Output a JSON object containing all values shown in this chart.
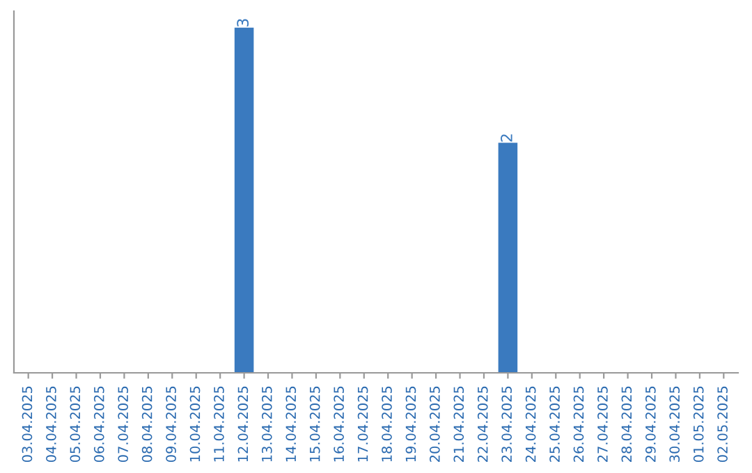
{
  "chart_data": {
    "type": "bar",
    "categories": [
      "03.04.2025",
      "04.04.2025",
      "05.04.2025",
      "06.04.2025",
      "07.04.2025",
      "08.04.2025",
      "09.04.2025",
      "10.04.2025",
      "11.04.2025",
      "12.04.2025",
      "13.04.2025",
      "14.04.2025",
      "15.04.2025",
      "16.04.2025",
      "17.04.2025",
      "18.04.2025",
      "19.04.2025",
      "20.04.2025",
      "21.04.2025",
      "22.04.2025",
      "23.04.2025",
      "24.04.2025",
      "25.04.2025",
      "26.04.2025",
      "27.04.2025",
      "28.04.2025",
      "29.04.2025",
      "30.04.2025",
      "01.05.2025",
      "02.05.2025"
    ],
    "values": [
      0,
      0,
      0,
      0,
      0,
      0,
      0,
      0,
      0,
      3,
      0,
      0,
      0,
      0,
      0,
      0,
      0,
      0,
      0,
      0,
      2,
      0,
      0,
      0,
      0,
      0,
      0,
      0,
      0,
      0
    ],
    "value_labels": [
      null,
      null,
      null,
      null,
      null,
      null,
      null,
      null,
      null,
      "3",
      null,
      null,
      null,
      null,
      null,
      null,
      null,
      null,
      null,
      null,
      "2",
      null,
      null,
      null,
      null,
      null,
      null,
      null,
      null,
      null
    ],
    "color": "#3a7abf",
    "tick_labels": "x",
    "grid": false
  }
}
